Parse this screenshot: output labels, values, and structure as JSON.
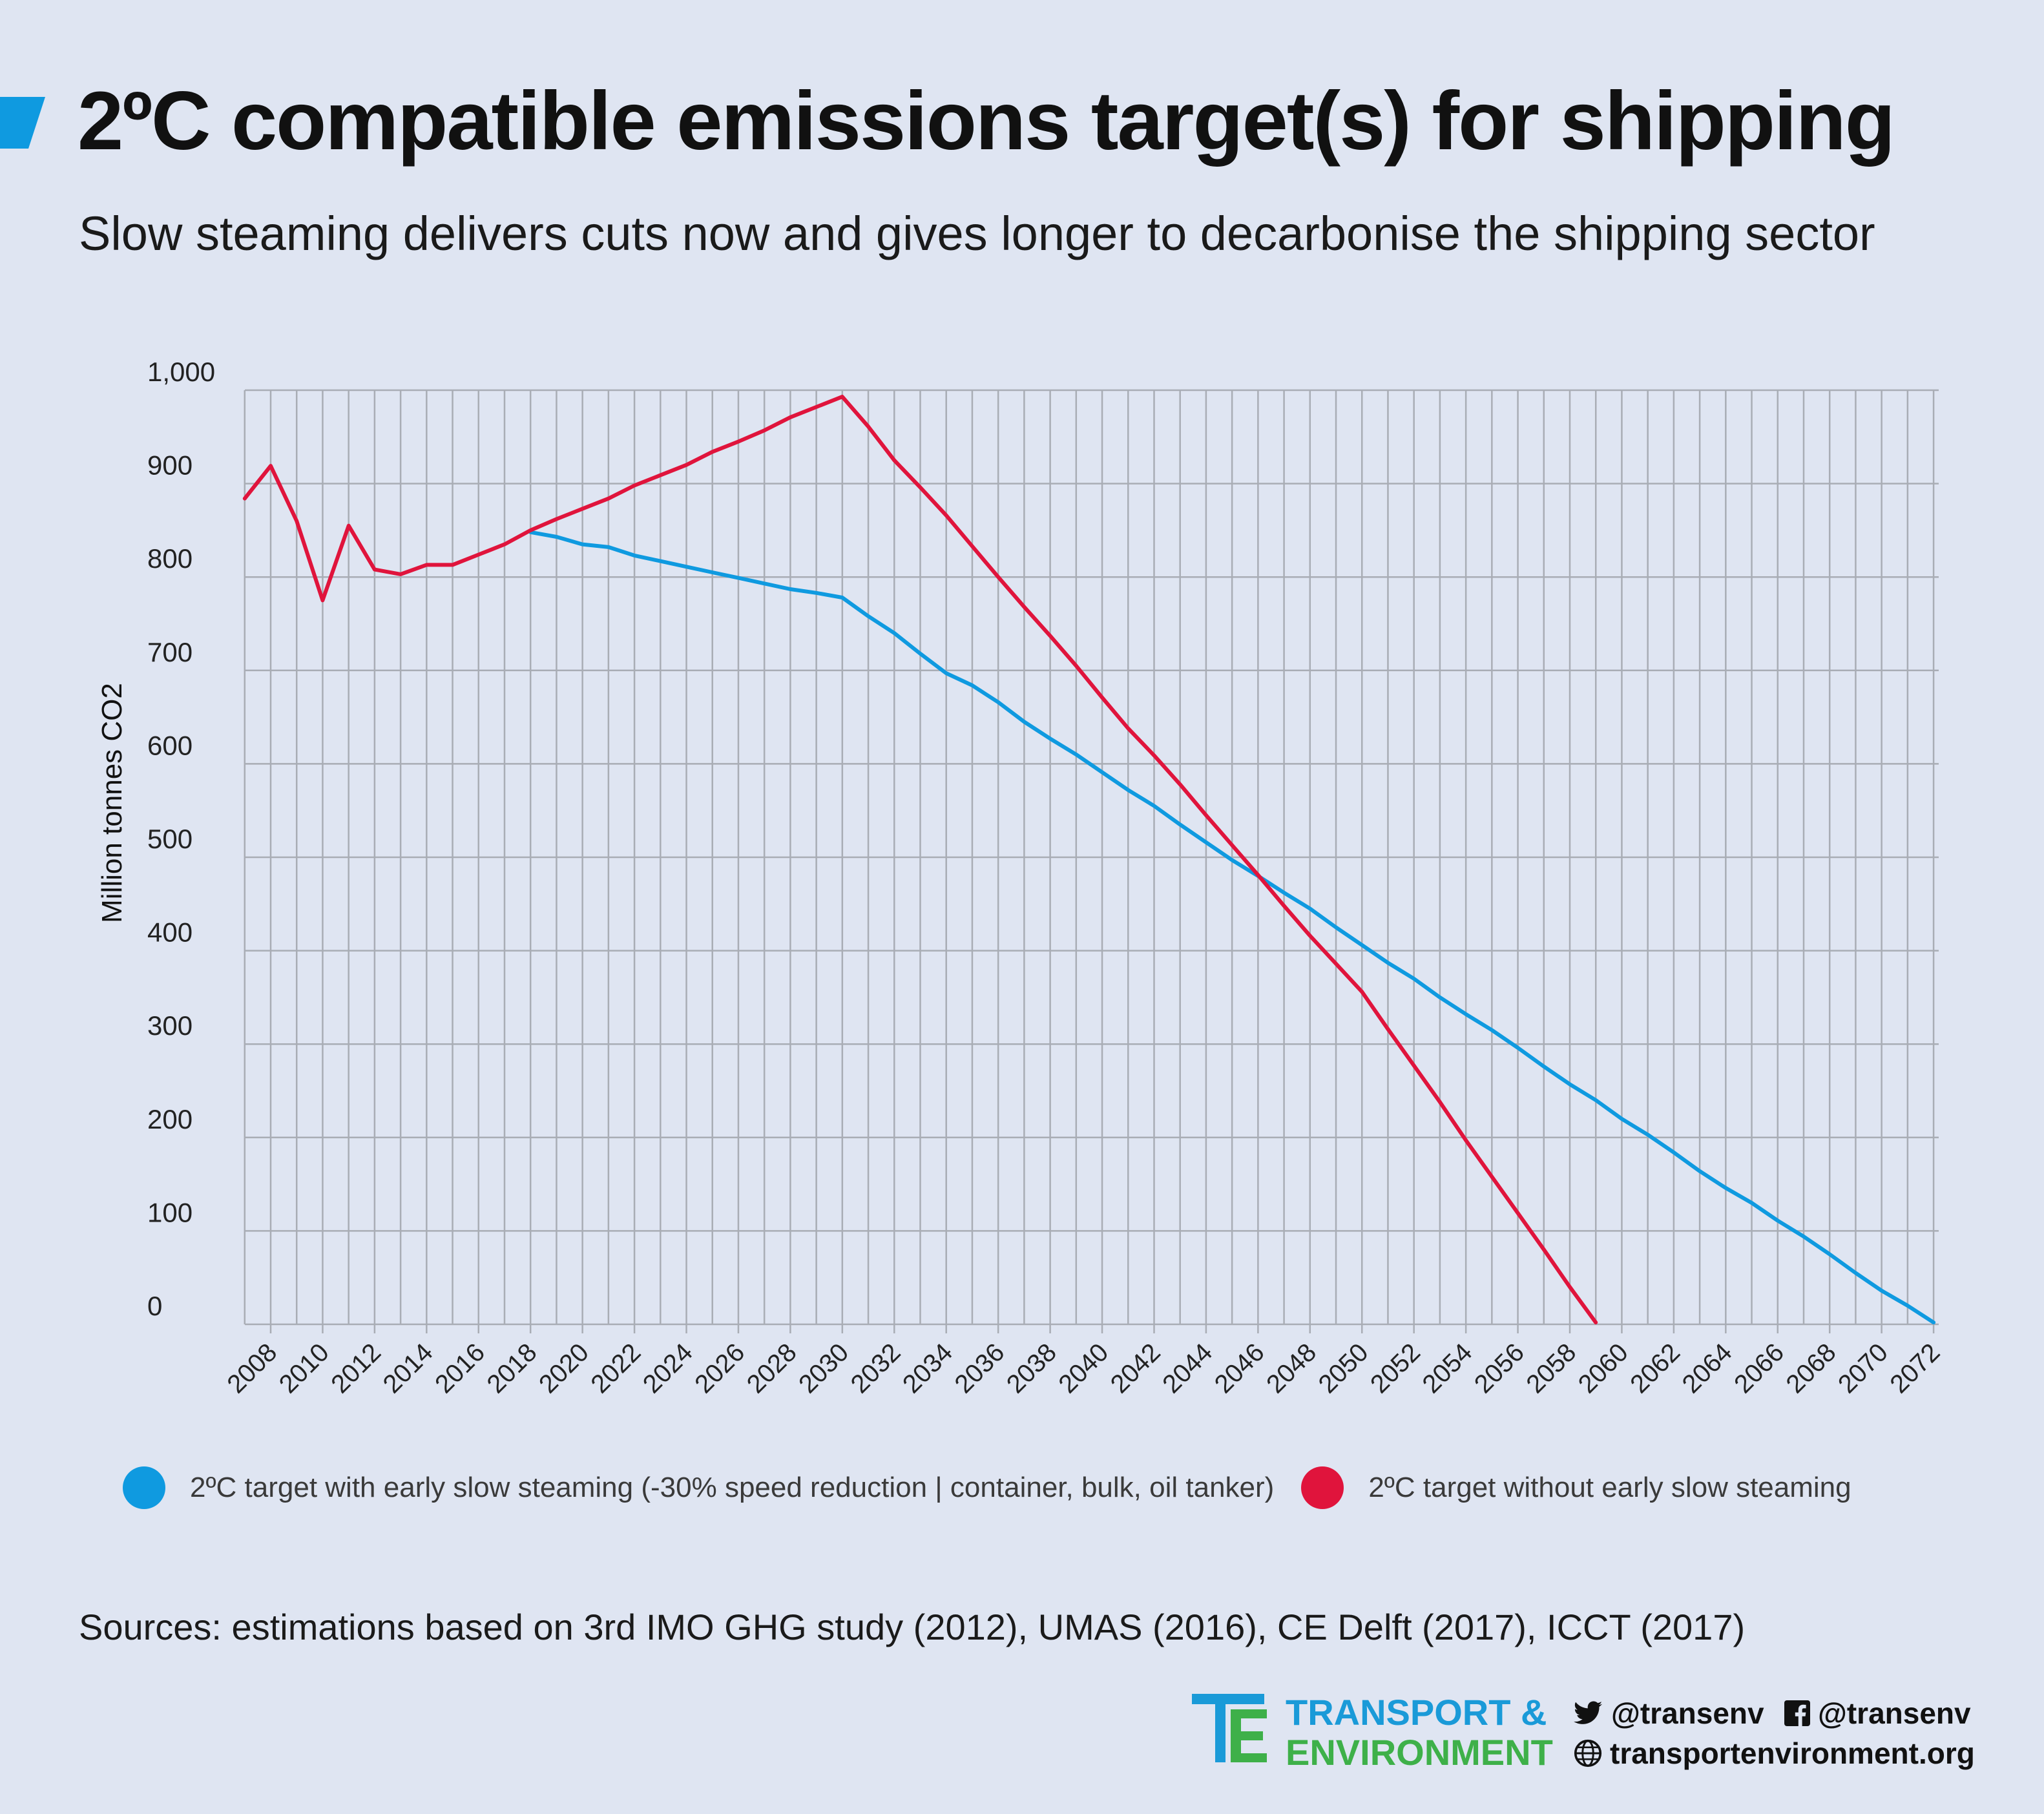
{
  "header": {
    "title": "2ºC compatible emissions target(s) for shipping",
    "subtitle": "Slow steaming delivers cuts now and gives longer to decarbonise the shipping sector"
  },
  "sources": "Sources: estimations based on 3rd IMO GHG study (2012), UMAS (2016), CE Delft (2017), ICCT (2017)",
  "brand": {
    "line1": "TRANSPORT &",
    "line2": "ENVIRONMENT",
    "twitter": "@transenv",
    "facebook": "@transenv",
    "website": "transportenvironment.org",
    "logo_color_blue": "#1a9ad8",
    "logo_color_green": "#3eb049"
  },
  "colors": {
    "background": "#dfe5f2",
    "grid": "#a9adb5",
    "series_blue": "#0f9ae0",
    "series_red": "#e0143c"
  },
  "chart_data": {
    "type": "line",
    "title": "2ºC compatible emissions target(s) for shipping",
    "xlabel": "",
    "ylabel": "Million tonnes CO2",
    "xlim": [
      2007,
      2072
    ],
    "ylim": [
      0,
      1000
    ],
    "x_ticks": [
      2008,
      2010,
      2012,
      2014,
      2016,
      2018,
      2020,
      2022,
      2024,
      2026,
      2028,
      2030,
      2032,
      2034,
      2036,
      2038,
      2040,
      2042,
      2044,
      2046,
      2048,
      2050,
      2052,
      2054,
      2056,
      2058,
      2060,
      2062,
      2064,
      2066,
      2068,
      2070,
      2072
    ],
    "y_ticks": [
      0,
      100,
      200,
      300,
      400,
      500,
      600,
      700,
      800,
      900,
      1000
    ],
    "y_tick_labels": [
      "0",
      "100",
      "200",
      "300",
      "400",
      "500",
      "600",
      "700",
      "800",
      "900",
      "1,000"
    ],
    "grid": true,
    "legend_position": "bottom",
    "series": [
      {
        "name": "2ºC target with early slow steaming (-30% speed reduction | container, bulk, oil tanker)",
        "color": "#0f9ae0",
        "points": [
          [
            2018,
            848
          ],
          [
            2019,
            843
          ],
          [
            2020,
            835
          ],
          [
            2021,
            832
          ],
          [
            2022,
            823
          ],
          [
            2023,
            817
          ],
          [
            2024,
            811
          ],
          [
            2025,
            805
          ],
          [
            2026,
            799
          ],
          [
            2027,
            793
          ],
          [
            2028,
            787
          ],
          [
            2029,
            783
          ],
          [
            2030,
            778
          ],
          [
            2031,
            758
          ],
          [
            2032,
            740
          ],
          [
            2033,
            718
          ],
          [
            2034,
            697
          ],
          [
            2035,
            684
          ],
          [
            2036,
            666
          ],
          [
            2037,
            645
          ],
          [
            2038,
            627
          ],
          [
            2039,
            610
          ],
          [
            2040,
            591
          ],
          [
            2041,
            572
          ],
          [
            2042,
            555
          ],
          [
            2043,
            535
          ],
          [
            2044,
            516
          ],
          [
            2045,
            497
          ],
          [
            2046,
            480
          ],
          [
            2047,
            462
          ],
          [
            2048,
            445
          ],
          [
            2049,
            425
          ],
          [
            2050,
            406
          ],
          [
            2051,
            387
          ],
          [
            2052,
            370
          ],
          [
            2053,
            350
          ],
          [
            2054,
            332
          ],
          [
            2055,
            315
          ],
          [
            2056,
            296
          ],
          [
            2057,
            276
          ],
          [
            2058,
            257
          ],
          [
            2059,
            240
          ],
          [
            2060,
            220
          ],
          [
            2061,
            203
          ],
          [
            2062,
            184
          ],
          [
            2063,
            164
          ],
          [
            2064,
            146
          ],
          [
            2065,
            130
          ],
          [
            2066,
            111
          ],
          [
            2067,
            94
          ],
          [
            2068,
            75
          ],
          [
            2069,
            55
          ],
          [
            2070,
            36
          ],
          [
            2071,
            20
          ],
          [
            2072,
            2
          ]
        ]
      },
      {
        "name": "2ºC target without early slow steaming",
        "color": "#e0143c",
        "points": [
          [
            2007,
            884
          ],
          [
            2008,
            919
          ],
          [
            2009,
            860
          ],
          [
            2010,
            775
          ],
          [
            2011,
            855
          ],
          [
            2012,
            808
          ],
          [
            2013,
            803
          ],
          [
            2014,
            813
          ],
          [
            2015,
            813
          ],
          [
            2016,
            824
          ],
          [
            2017,
            835
          ],
          [
            2018,
            850
          ],
          [
            2019,
            862
          ],
          [
            2020,
            873
          ],
          [
            2021,
            884
          ],
          [
            2022,
            898
          ],
          [
            2023,
            909
          ],
          [
            2024,
            920
          ],
          [
            2025,
            934
          ],
          [
            2026,
            945
          ],
          [
            2027,
            957
          ],
          [
            2028,
            971
          ],
          [
            2029,
            982
          ],
          [
            2030,
            993
          ],
          [
            2031,
            961
          ],
          [
            2032,
            925
          ],
          [
            2033,
            896
          ],
          [
            2034,
            866
          ],
          [
            2035,
            833
          ],
          [
            2036,
            800
          ],
          [
            2037,
            768
          ],
          [
            2038,
            737
          ],
          [
            2039,
            705
          ],
          [
            2040,
            671
          ],
          [
            2041,
            638
          ],
          [
            2042,
            609
          ],
          [
            2043,
            578
          ],
          [
            2044,
            545
          ],
          [
            2045,
            513
          ],
          [
            2046,
            481
          ],
          [
            2047,
            448
          ],
          [
            2048,
            416
          ],
          [
            2049,
            386
          ],
          [
            2050,
            356
          ],
          [
            2051,
            316
          ],
          [
            2052,
            277
          ],
          [
            2053,
            238
          ],
          [
            2054,
            197
          ],
          [
            2055,
            158
          ],
          [
            2056,
            119
          ],
          [
            2057,
            80
          ],
          [
            2058,
            40
          ],
          [
            2059,
            2
          ]
        ]
      }
    ]
  }
}
